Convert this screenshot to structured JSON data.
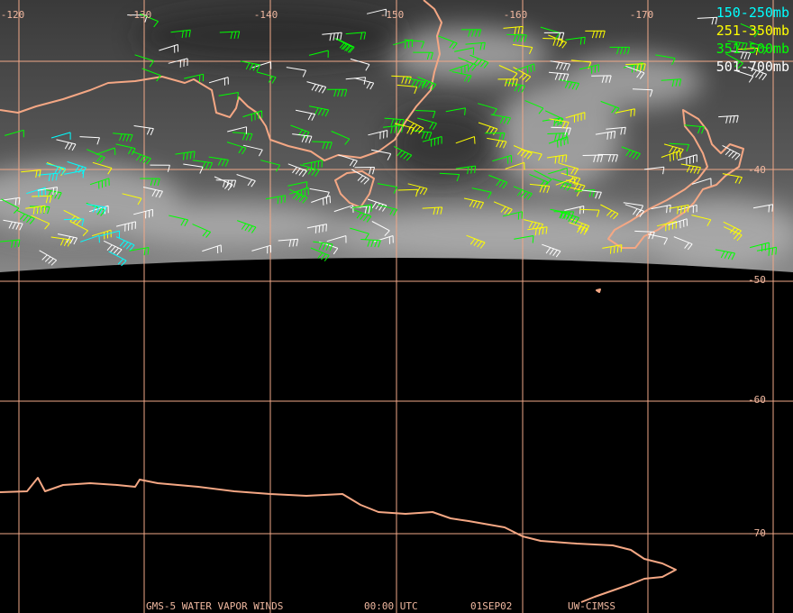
{
  "longitude_labels": [
    "-120",
    "-130",
    "-140",
    "-150",
    "-160",
    "-170"
  ],
  "latitude_labels": [
    "-40",
    "-50",
    "-60",
    "-70"
  ],
  "legend": [
    {
      "label": "150-250mb",
      "color": "#00ffff"
    },
    {
      "label": "251-350mb",
      "color": "#ffff00"
    },
    {
      "label": "351-500mb",
      "color": "#00ff00"
    },
    {
      "label": "501-700mb",
      "color": "#ffffff"
    }
  ],
  "footer": [
    "GMS-5 WATER VAPOR WINDS",
    "00:00 UTC",
    "01SEP02",
    "UW-CIMSS"
  ]
}
